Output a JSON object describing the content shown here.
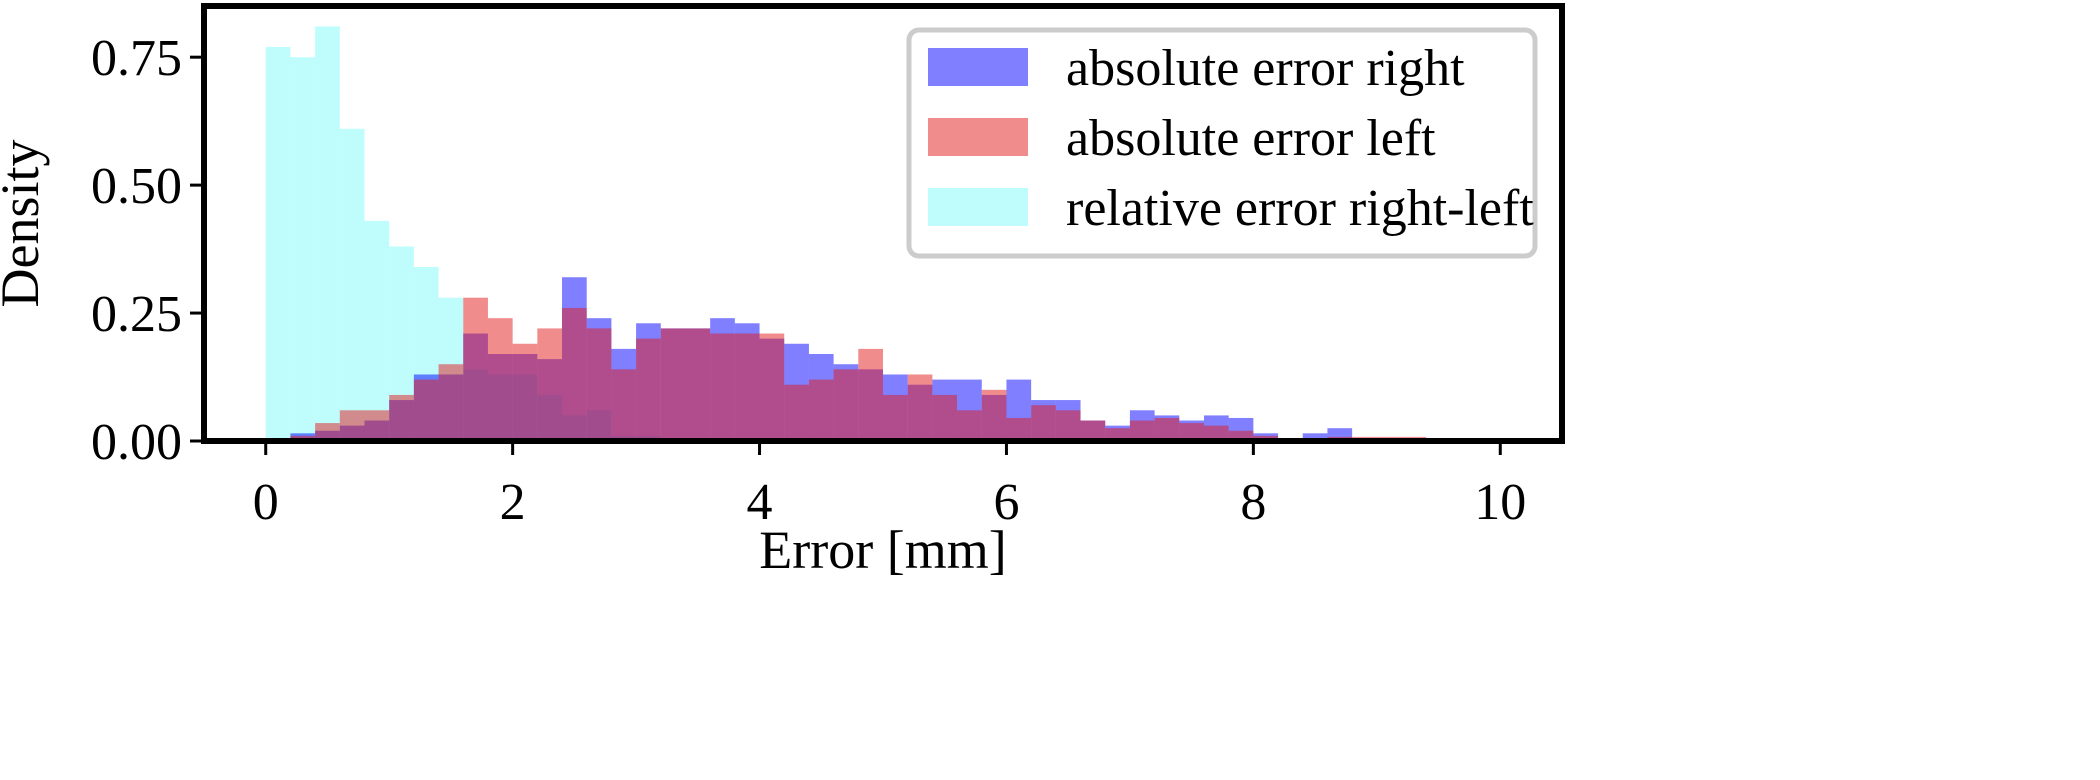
{
  "chart_data": {
    "type": "histogram",
    "xlabel": "Error [mm]",
    "ylabel": "Density",
    "xlim": [
      -0.5,
      10.5
    ],
    "ylim": [
      0,
      0.85
    ],
    "xticks": [
      0,
      2,
      4,
      6,
      8,
      10
    ],
    "xtick_labels": [
      "0",
      "2",
      "4",
      "6",
      "8",
      "10"
    ],
    "yticks": [
      0,
      0.25,
      0.5,
      0.75
    ],
    "ytick_labels": [
      "0.00",
      "0.25",
      "0.50",
      "0.75"
    ],
    "grid": false,
    "legend_position": "top-right",
    "series": [
      {
        "name": "absolute error right",
        "color": "#0000ff",
        "opacity": 0.5,
        "bin_edges": [
          0.2,
          0.4,
          0.6,
          0.8,
          1.0,
          1.2,
          1.4,
          1.6,
          1.8,
          2.0,
          2.2,
          2.4,
          2.6,
          2.8,
          3.0,
          3.2,
          3.4,
          3.6,
          3.8,
          4.0,
          4.2,
          4.4,
          4.6,
          4.8,
          5.0,
          5.2,
          5.4,
          5.6,
          5.8,
          6.0,
          6.2,
          6.4,
          6.6,
          6.8,
          7.0,
          7.2,
          7.4,
          7.6,
          7.8,
          8.0,
          8.2,
          8.4,
          8.6,
          8.8
        ],
        "densities": [
          0.015,
          0.02,
          0.03,
          0.04,
          0.08,
          0.13,
          0.13,
          0.21,
          0.17,
          0.17,
          0.16,
          0.32,
          0.24,
          0.18,
          0.23,
          0.22,
          0.22,
          0.24,
          0.23,
          0.2,
          0.19,
          0.17,
          0.15,
          0.14,
          0.13,
          0.11,
          0.12,
          0.12,
          0.09,
          0.12,
          0.08,
          0.08,
          0.04,
          0.03,
          0.06,
          0.05,
          0.04,
          0.05,
          0.045,
          0.015,
          0.005,
          0.015,
          0.025
        ]
      },
      {
        "name": "absolute error left",
        "color": "#e31a1c",
        "opacity": 0.5,
        "bin_edges": [
          0.2,
          0.4,
          0.6,
          0.8,
          1.0,
          1.2,
          1.4,
          1.6,
          1.8,
          2.0,
          2.2,
          2.4,
          2.6,
          2.8,
          3.0,
          3.2,
          3.4,
          3.6,
          3.8,
          4.0,
          4.2,
          4.4,
          4.6,
          4.8,
          5.0,
          5.2,
          5.4,
          5.6,
          5.8,
          6.0,
          6.2,
          6.4,
          6.6,
          6.8,
          7.0,
          7.2,
          7.4,
          7.6,
          7.8,
          8.0,
          8.2,
          8.4,
          8.6,
          8.8,
          9.0,
          9.2,
          9.4
        ],
        "densities": [
          0.01,
          0.035,
          0.06,
          0.06,
          0.09,
          0.12,
          0.15,
          0.28,
          0.24,
          0.19,
          0.22,
          0.26,
          0.22,
          0.14,
          0.2,
          0.22,
          0.22,
          0.21,
          0.21,
          0.21,
          0.11,
          0.12,
          0.14,
          0.18,
          0.09,
          0.13,
          0.09,
          0.06,
          0.1,
          0.045,
          0.07,
          0.06,
          0.04,
          0.025,
          0.04,
          0.045,
          0.035,
          0.03,
          0.02,
          0.01,
          0.005,
          0.005,
          0.008,
          0.008,
          0.008,
          0.008
        ]
      },
      {
        "name": "relative error right-left",
        "color": "#7ffcfc",
        "opacity": 0.5,
        "bin_edges": [
          0.0,
          0.2,
          0.4,
          0.6,
          0.8,
          1.0,
          1.2,
          1.4,
          1.6,
          1.8,
          2.0,
          2.2,
          2.4,
          2.6,
          2.8,
          3.0,
          3.2
        ],
        "densities": [
          0.77,
          0.75,
          0.81,
          0.61,
          0.43,
          0.38,
          0.34,
          0.28,
          0.14,
          0.13,
          0.13,
          0.09,
          0.05,
          0.06,
          0.01,
          0.01
        ]
      }
    ]
  }
}
